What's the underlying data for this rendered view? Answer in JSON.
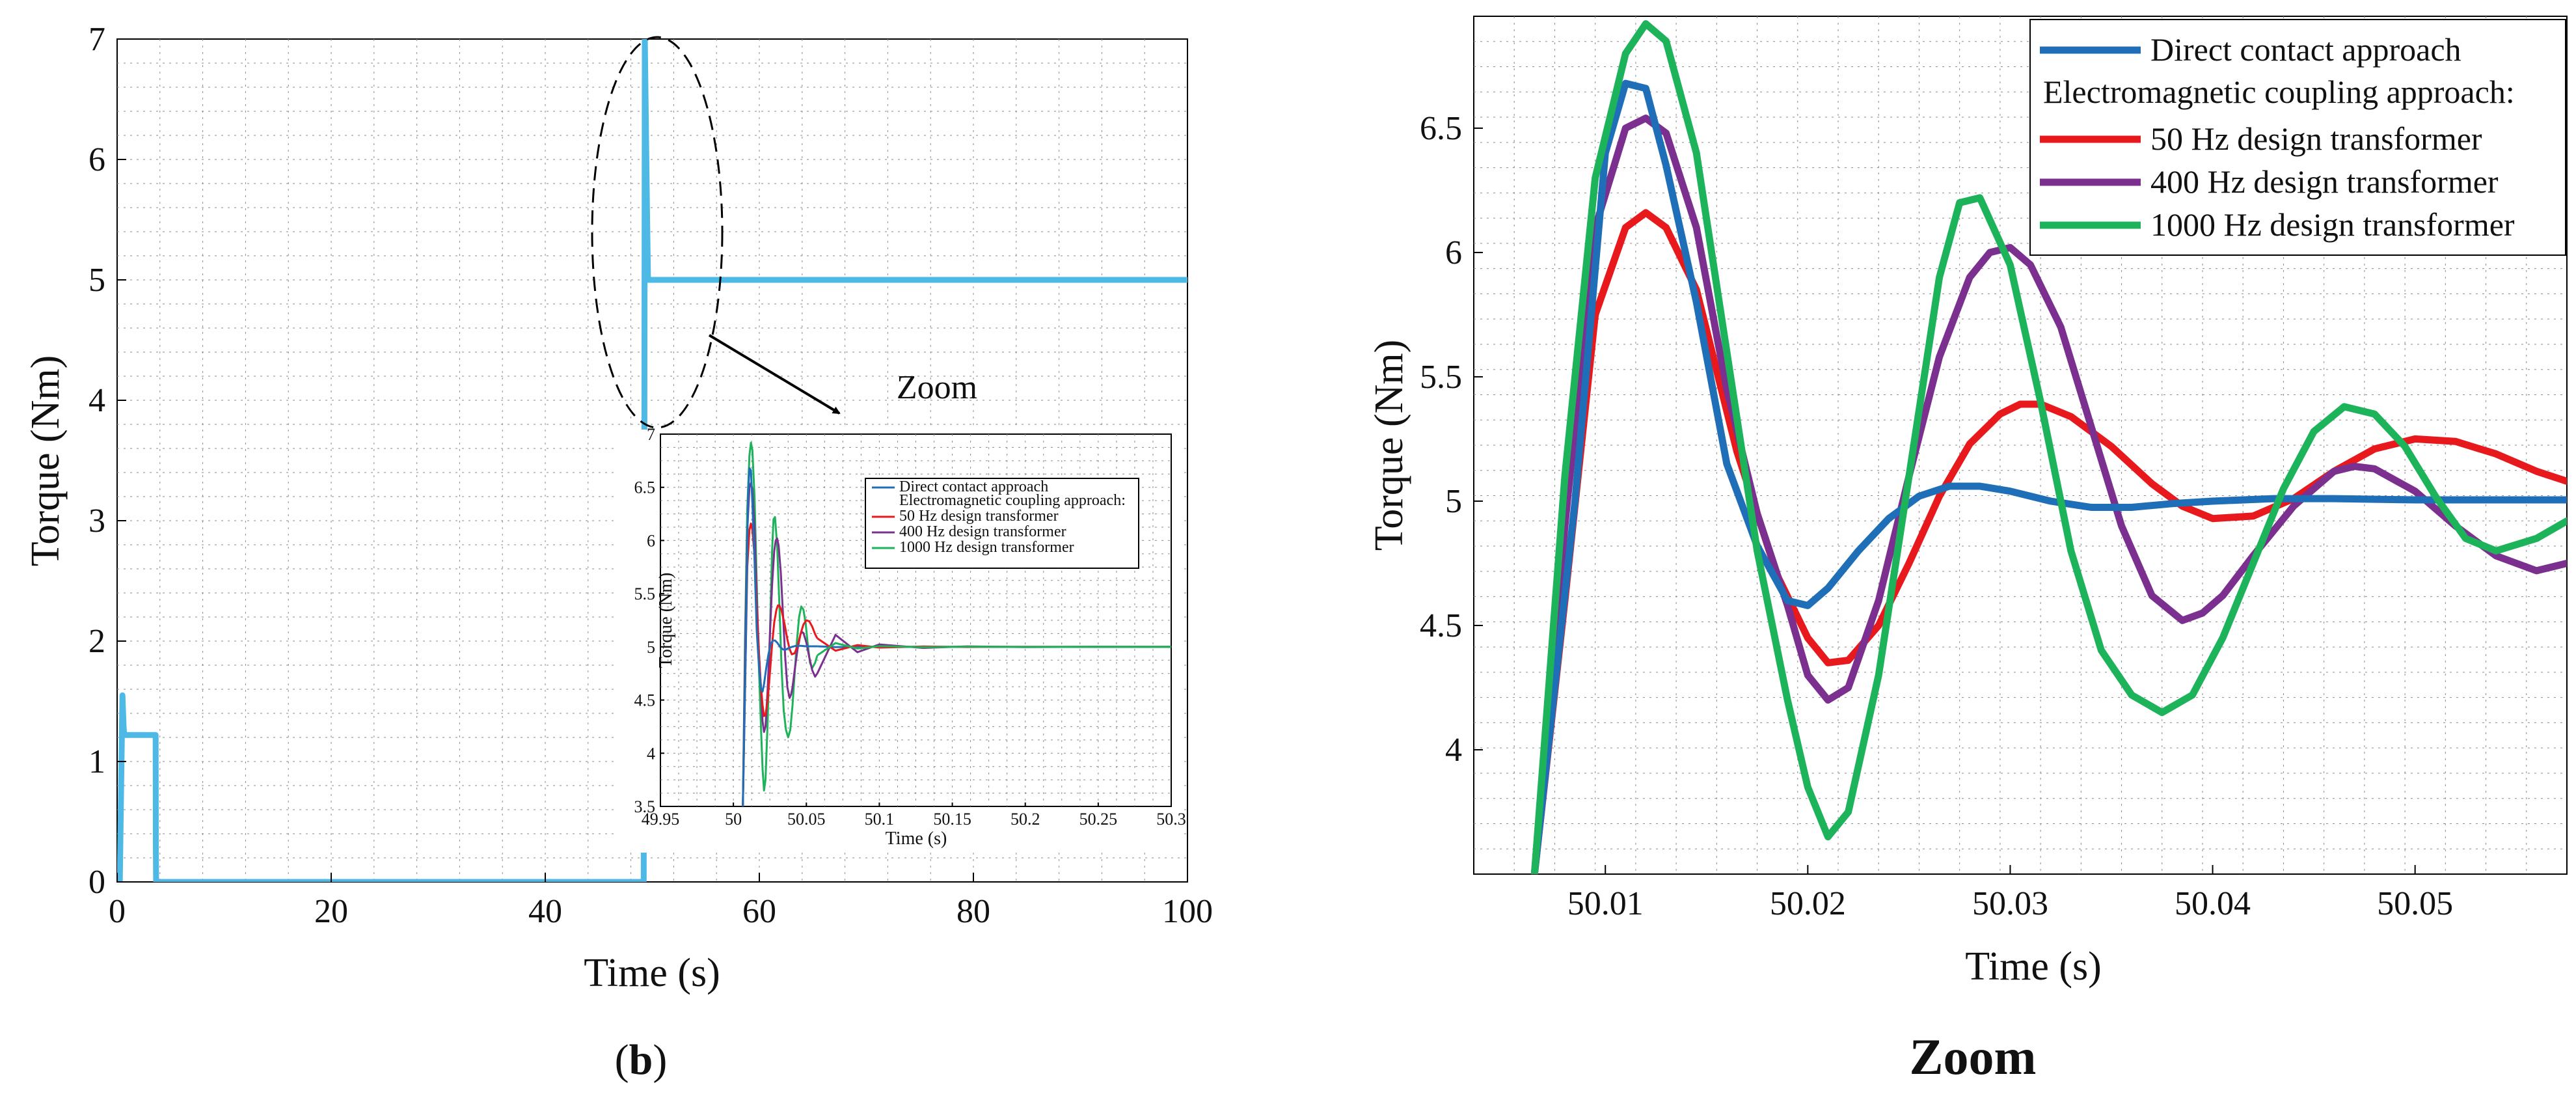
{
  "chart_data": [
    {
      "id": "main",
      "type": "line",
      "xlabel": "Time (s)",
      "ylabel": "Torque (Nm)",
      "xlim": [
        0,
        100
      ],
      "ylim": [
        0,
        7
      ],
      "xticks": [
        0,
        20,
        40,
        60,
        80,
        100
      ],
      "yticks": [
        0,
        1,
        2,
        3,
        4,
        5,
        6,
        7
      ],
      "grid": true,
      "color": "#4fb9e6",
      "series": [
        {
          "name": "Torque",
          "x": [
            0,
            0.25,
            0.5,
            0.6,
            0.65,
            3.6,
            3.62,
            3.64,
            49.2,
            49.25,
            49.3,
            49.5,
            49.6,
            100
          ],
          "y": [
            0,
            0,
            1.55,
            1.3,
            1.22,
            1.22,
            0.3,
            0,
            0,
            3,
            7,
            5.6,
            5.0,
            5.0
          ]
        }
      ],
      "annotation": {
        "text": "Zoom"
      },
      "caption": {
        "open": "(",
        "bold": "b",
        "close": ")"
      }
    },
    {
      "id": "inset",
      "type": "line",
      "xlabel": "Time (s)",
      "ylabel": "Torque (Nm)",
      "xlim": [
        49.95,
        50.3
      ],
      "ylim": [
        3.5,
        7
      ],
      "xticks": [
        49.95,
        50,
        50.05,
        50.1,
        50.15,
        50.2,
        50.25,
        50.3
      ],
      "xtick_labels": [
        "49.95",
        "50",
        "50.05",
        "50.1",
        "50.15",
        "50.2",
        "50.25",
        "50.3"
      ],
      "yticks": [
        3.5,
        4,
        4.5,
        5,
        5.5,
        6,
        6.5,
        7
      ],
      "ytick_labels": [
        "3.5",
        "4",
        "4.5",
        "5",
        "5.5",
        "6",
        "6.5",
        "7"
      ],
      "grid": true
    },
    {
      "id": "zoom",
      "type": "line",
      "xlabel": "Time (s)",
      "ylabel": "Torque (Nm)",
      "xlim": [
        50.0035,
        50.0575
      ],
      "ylim": [
        3.5,
        6.95
      ],
      "xticks": [
        50.01,
        50.02,
        50.03,
        50.04,
        50.05
      ],
      "xtick_labels": [
        "50.01",
        "50.02",
        "50.03",
        "50.04",
        "50.05"
      ],
      "yticks": [
        4,
        4.5,
        5,
        5.5,
        6,
        6.5
      ],
      "ytick_labels": [
        "4",
        "4.5",
        "5",
        "5.5",
        "6",
        "6.5"
      ],
      "grid": true,
      "legend_position": "top-right",
      "legend_heading": "Electromagnetic coupling approach:",
      "caption": "Zoom",
      "series": [
        {
          "name": "Direct contact approach",
          "color": "#1f6fb8",
          "x": [
            50.0065,
            50.0085,
            50.01,
            50.011,
            50.012,
            50.013,
            50.0145,
            50.016,
            50.0175,
            50.019,
            50.02,
            50.021,
            50.0225,
            50.024,
            50.0255,
            50.027,
            50.0285,
            50.03,
            50.032,
            50.034,
            50.036,
            50.038,
            50.04,
            50.043,
            50.046,
            50.05,
            50.054,
            50.0575
          ],
          "y": [
            3.5,
            5.0,
            6.4,
            6.68,
            6.66,
            6.35,
            5.8,
            5.15,
            4.82,
            4.6,
            4.58,
            4.65,
            4.8,
            4.93,
            5.02,
            5.06,
            5.06,
            5.04,
            5.0,
            4.975,
            4.975,
            4.99,
            5.0,
            5.01,
            5.01,
            5.005,
            5.005,
            5.005
          ]
        },
        {
          "name": "50 Hz design transformer",
          "color": "#e8191c",
          "x": [
            50.0065,
            50.008,
            50.0095,
            50.011,
            50.012,
            50.013,
            50.0145,
            50.0165,
            50.0185,
            50.02,
            50.021,
            50.022,
            50.0235,
            50.025,
            50.0265,
            50.028,
            50.0295,
            50.0305,
            50.0315,
            50.033,
            50.035,
            50.037,
            50.0385,
            50.04,
            50.042,
            50.044,
            50.046,
            50.048,
            50.05,
            50.052,
            50.054,
            50.056,
            50.0575
          ],
          "y": [
            3.5,
            4.6,
            5.75,
            6.1,
            6.16,
            6.1,
            5.85,
            5.2,
            4.7,
            4.45,
            4.35,
            4.36,
            4.5,
            4.75,
            5.02,
            5.23,
            5.35,
            5.39,
            5.39,
            5.34,
            5.22,
            5.07,
            4.98,
            4.93,
            4.94,
            5.01,
            5.12,
            5.21,
            5.25,
            5.24,
            5.19,
            5.12,
            5.08
          ]
        },
        {
          "name": "400 Hz design transformer",
          "color": "#7b2f8e",
          "x": [
            50.0065,
            50.008,
            50.0095,
            50.011,
            50.012,
            50.013,
            50.0145,
            50.016,
            50.0175,
            50.019,
            50.02,
            50.021,
            50.022,
            50.0235,
            50.025,
            50.0265,
            50.028,
            50.029,
            50.03,
            50.031,
            50.0325,
            50.034,
            50.0355,
            50.037,
            50.0385,
            50.0395,
            50.0405,
            50.042,
            50.044,
            50.046,
            50.047,
            50.048,
            50.05,
            50.052,
            50.054,
            50.056,
            50.0575
          ],
          "y": [
            3.5,
            4.9,
            6.1,
            6.5,
            6.54,
            6.48,
            6.1,
            5.45,
            4.95,
            4.58,
            4.3,
            4.2,
            4.25,
            4.6,
            5.1,
            5.58,
            5.9,
            6.0,
            6.02,
            5.95,
            5.7,
            5.3,
            4.9,
            4.62,
            4.52,
            4.55,
            4.62,
            4.78,
            4.98,
            5.12,
            5.14,
            5.13,
            5.04,
            4.9,
            4.78,
            4.72,
            4.75
          ]
        },
        {
          "name": "1000 Hz design transformer",
          "color": "#1db35a",
          "x": [
            50.0065,
            50.008,
            50.0095,
            50.011,
            50.012,
            50.013,
            50.0145,
            50.016,
            50.0175,
            50.019,
            50.02,
            50.021,
            50.022,
            50.0235,
            50.025,
            50.0265,
            50.0275,
            50.0285,
            50.03,
            50.0315,
            50.033,
            50.0345,
            50.036,
            50.0375,
            50.039,
            50.0405,
            50.042,
            50.0435,
            50.045,
            50.0465,
            50.048,
            50.0495,
            50.051,
            50.0525,
            50.054,
            50.056,
            50.0575
          ],
          "y": [
            3.5,
            5.1,
            6.3,
            6.8,
            6.92,
            6.85,
            6.4,
            5.6,
            4.8,
            4.2,
            3.85,
            3.65,
            3.75,
            4.3,
            5.1,
            5.9,
            6.2,
            6.22,
            5.95,
            5.4,
            4.8,
            4.4,
            4.22,
            4.15,
            4.22,
            4.45,
            4.75,
            5.05,
            5.28,
            5.38,
            5.35,
            5.22,
            5.02,
            4.85,
            4.8,
            4.85,
            4.92
          ]
        }
      ]
    }
  ]
}
